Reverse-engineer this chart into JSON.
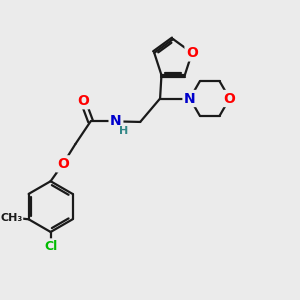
{
  "background_color": "#ebebeb",
  "bond_color": "#1a1a1a",
  "bond_width": 1.6,
  "atom_colors": {
    "O": "#ff0000",
    "N": "#0000cc",
    "Cl": "#00bb00",
    "H": "#338888",
    "C": "#1a1a1a"
  },
  "font_size_atoms": 10,
  "font_size_cl": 9,
  "font_size_h": 8,
  "figsize": [
    3.0,
    3.0
  ],
  "dpi": 100
}
